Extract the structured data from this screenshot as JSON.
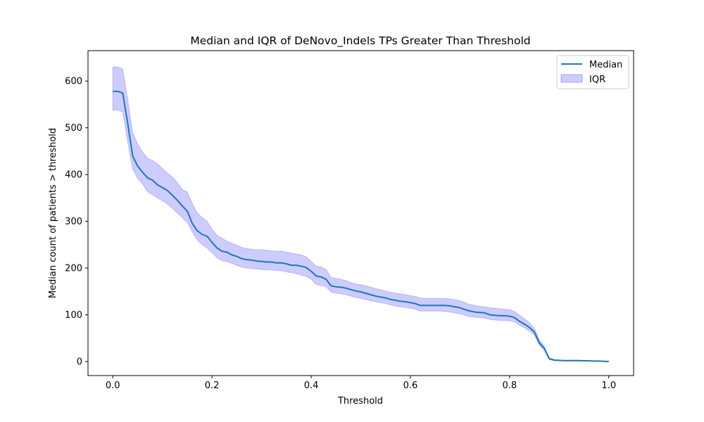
{
  "chart_data": {
    "type": "line",
    "title": "Median and IQR of DeNovo_Indels TPs Greater Than Threshold",
    "xlabel": "Threshold",
    "ylabel": "Median count of patients > threshold",
    "xlim": [
      -0.05,
      1.05
    ],
    "ylim": [
      -30,
      665
    ],
    "xticks": [
      0.0,
      0.2,
      0.4,
      0.6,
      0.8,
      1.0
    ],
    "xtick_labels": [
      "0.0",
      "0.2",
      "0.4",
      "0.6",
      "0.8",
      "1.0"
    ],
    "yticks": [
      0,
      100,
      200,
      300,
      400,
      500,
      600
    ],
    "ytick_labels": [
      "0",
      "100",
      "200",
      "300",
      "400",
      "500",
      "600"
    ],
    "grid": false,
    "legend_position": "top-right",
    "colors": {
      "median": "#1f77b4",
      "iqr_fill": "#0000ff",
      "iqr_edge": "#6060ff"
    },
    "series": [
      {
        "name": "Median",
        "kind": "line",
        "x": [
          0.0,
          0.01,
          0.02,
          0.03,
          0.04,
          0.05,
          0.06,
          0.07,
          0.08,
          0.09,
          0.1,
          0.11,
          0.12,
          0.13,
          0.14,
          0.15,
          0.16,
          0.17,
          0.18,
          0.19,
          0.2,
          0.21,
          0.22,
          0.23,
          0.24,
          0.25,
          0.26,
          0.27,
          0.28,
          0.29,
          0.3,
          0.31,
          0.32,
          0.33,
          0.34,
          0.35,
          0.36,
          0.37,
          0.38,
          0.39,
          0.4,
          0.41,
          0.42,
          0.43,
          0.44,
          0.45,
          0.46,
          0.47,
          0.48,
          0.49,
          0.5,
          0.51,
          0.52,
          0.53,
          0.54,
          0.55,
          0.56,
          0.57,
          0.58,
          0.59,
          0.6,
          0.61,
          0.62,
          0.63,
          0.64,
          0.65,
          0.66,
          0.67,
          0.68,
          0.69,
          0.7,
          0.71,
          0.72,
          0.73,
          0.74,
          0.75,
          0.76,
          0.77,
          0.78,
          0.79,
          0.8,
          0.81,
          0.82,
          0.83,
          0.84,
          0.85,
          0.86,
          0.87,
          0.88,
          0.89,
          0.9,
          0.91,
          0.92,
          0.93,
          0.94,
          0.95,
          0.96,
          0.97,
          0.98,
          0.99,
          1.0
        ],
        "y": [
          578,
          578,
          574,
          510,
          440,
          418,
          405,
          393,
          388,
          378,
          372,
          366,
          356,
          345,
          333,
          322,
          296,
          280,
          272,
          268,
          255,
          243,
          236,
          234,
          228,
          225,
          220,
          218,
          217,
          215,
          214,
          213,
          213,
          211,
          211,
          209,
          206,
          206,
          204,
          201,
          193,
          183,
          181,
          176,
          162,
          160,
          159,
          157,
          154,
          151,
          149,
          146,
          143,
          140,
          138,
          136,
          133,
          131,
          129,
          128,
          126,
          124,
          120,
          120,
          120,
          120,
          120,
          120,
          119,
          117,
          115,
          111,
          108,
          106,
          105,
          104,
          100,
          99,
          98,
          98,
          97,
          94,
          86,
          80,
          73,
          63,
          40,
          28,
          6,
          3,
          2.5,
          2,
          2,
          2,
          2,
          1.5,
          1.5,
          1,
          1,
          0.5,
          0
        ]
      },
      {
        "name": "IQR",
        "kind": "band",
        "x": [
          0.0,
          0.01,
          0.02,
          0.03,
          0.04,
          0.05,
          0.06,
          0.07,
          0.08,
          0.09,
          0.1,
          0.11,
          0.12,
          0.13,
          0.14,
          0.15,
          0.16,
          0.17,
          0.18,
          0.19,
          0.2,
          0.21,
          0.22,
          0.23,
          0.24,
          0.25,
          0.26,
          0.27,
          0.28,
          0.29,
          0.3,
          0.31,
          0.32,
          0.33,
          0.34,
          0.35,
          0.36,
          0.37,
          0.38,
          0.39,
          0.4,
          0.41,
          0.42,
          0.43,
          0.44,
          0.45,
          0.46,
          0.47,
          0.48,
          0.49,
          0.5,
          0.51,
          0.52,
          0.53,
          0.54,
          0.55,
          0.56,
          0.57,
          0.58,
          0.59,
          0.6,
          0.61,
          0.62,
          0.63,
          0.64,
          0.65,
          0.66,
          0.67,
          0.68,
          0.69,
          0.7,
          0.71,
          0.72,
          0.73,
          0.74,
          0.75,
          0.76,
          0.77,
          0.78,
          0.79,
          0.8,
          0.81,
          0.82,
          0.83,
          0.84,
          0.85,
          0.86,
          0.87,
          0.88,
          0.89,
          0.9,
          0.91,
          0.92,
          0.93,
          0.94,
          0.95,
          0.96,
          0.97,
          0.98,
          0.99,
          1.0
        ],
        "lower": [
          538,
          538,
          534,
          470,
          412,
          392,
          380,
          363,
          357,
          350,
          344,
          337,
          328,
          318,
          308,
          298,
          278,
          260,
          250,
          243,
          233,
          222,
          216,
          214,
          210,
          206,
          202,
          200,
          199,
          198,
          197,
          196,
          196,
          195,
          194,
          192,
          190,
          188,
          185,
          182,
          176,
          165,
          163,
          160,
          149,
          146,
          145,
          143,
          140,
          137,
          135,
          133,
          130,
          128,
          126,
          124,
          121,
          119,
          117,
          116,
          114,
          112,
          108,
          108,
          108,
          108,
          108,
          107,
          106,
          104,
          102,
          99,
          96,
          95,
          94,
          93,
          90,
          89,
          88,
          88,
          87,
          85,
          78,
          72,
          65,
          56,
          35,
          24,
          4,
          2,
          1.5,
          1,
          1,
          1,
          1,
          1,
          1,
          0.5,
          0.5,
          0,
          0
        ],
        "upper": [
          630,
          630,
          626,
          560,
          490,
          465,
          448,
          435,
          430,
          423,
          413,
          403,
          395,
          383,
          368,
          363,
          338,
          318,
          308,
          300,
          283,
          270,
          264,
          257,
          253,
          249,
          244,
          242,
          240,
          239,
          239,
          238,
          237,
          236,
          236,
          234,
          232,
          230,
          228,
          224,
          214,
          204,
          202,
          197,
          180,
          178,
          176,
          173,
          169,
          166,
          164,
          162,
          159,
          156,
          154,
          151,
          148,
          146,
          145,
          143,
          141,
          139,
          136,
          135,
          135,
          135,
          135,
          135,
          134,
          132,
          130,
          126,
          122,
          120,
          118,
          117,
          115,
          114,
          113,
          112,
          111,
          107,
          99,
          91,
          83,
          71,
          46,
          32,
          8,
          4,
          3.5,
          3,
          3,
          3,
          3,
          2.5,
          2,
          1.5,
          1.5,
          1,
          0.5
        ]
      }
    ]
  }
}
